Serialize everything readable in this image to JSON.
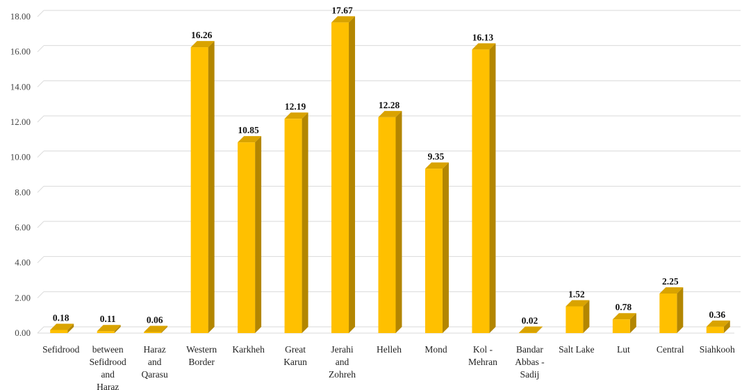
{
  "chart_data": {
    "type": "bar",
    "style": "3d-column",
    "categories": [
      "Sefidrood",
      "between Sefidrood and Haraz",
      "Haraz and Qarasu",
      "Western Border",
      "Karkheh",
      "Great Karun",
      "Jerahi and Zohreh",
      "Helleh",
      "Mond",
      "Kol - Mehran",
      "Bandar Abbas - Sadij",
      "Salt Lake",
      "Lut",
      "Central",
      "Siahkooh"
    ],
    "category_lines": [
      [
        "Sefidrood"
      ],
      [
        "between",
        "Sefidrood",
        "and",
        "Haraz"
      ],
      [
        "Haraz",
        "and",
        "Qarasu"
      ],
      [
        "Western",
        "Border"
      ],
      [
        "Karkheh"
      ],
      [
        "Great",
        "Karun"
      ],
      [
        "Jerahi",
        "and",
        "Zohreh"
      ],
      [
        "Helleh"
      ],
      [
        "Mond"
      ],
      [
        "Kol -",
        "Mehran"
      ],
      [
        "Bandar",
        "Abbas -",
        "Sadij"
      ],
      [
        "Salt Lake"
      ],
      [
        "Lut"
      ],
      [
        "Central"
      ],
      [
        "Siahkooh"
      ]
    ],
    "values": [
      0.18,
      0.11,
      0.06,
      16.26,
      10.85,
      12.19,
      17.67,
      12.28,
      9.35,
      16.13,
      0.02,
      1.52,
      0.78,
      2.25,
      0.36
    ],
    "data_labels": [
      "0.18",
      "0.11",
      "0.06",
      "16.26",
      "10.85",
      "12.19",
      "17.67",
      "12.28",
      "9.35",
      "16.13",
      "0.02",
      "1.52",
      "0.78",
      "2.25",
      "0.36"
    ],
    "ylim": [
      0,
      18
    ],
    "yticks": [
      "0.00",
      "2.00",
      "4.00",
      "6.00",
      "8.00",
      "10.00",
      "12.00",
      "14.00",
      "16.00",
      "18.00"
    ],
    "title": "",
    "xlabel": "",
    "ylabel": "",
    "grid": true,
    "legend": "none",
    "colors": {
      "front": "#FFC000",
      "side": "#B38600",
      "top": "#D9A300",
      "grid": "#D9D9D9"
    }
  }
}
